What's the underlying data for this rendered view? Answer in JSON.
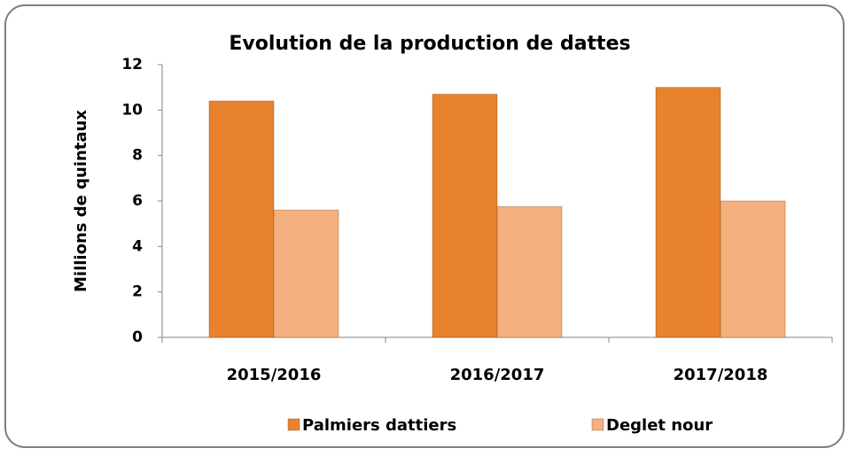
{
  "chart_data": {
    "type": "bar",
    "title": "Evolution de la production de dattes",
    "y_label": "Millions de quintaux",
    "categories": [
      "2015/2016",
      "2016/2017",
      "2017/2018"
    ],
    "series": [
      {
        "name": "Palmiers dattiers",
        "color": "#e8822c",
        "values": [
          10.4,
          10.7,
          11.0
        ]
      },
      {
        "name": "Deglet nour",
        "color": "#f4b07e",
        "values": [
          5.6,
          5.75,
          6.0
        ]
      }
    ],
    "ylim": [
      0,
      12
    ],
    "yticks": [
      0,
      2,
      4,
      6,
      8,
      10,
      12
    ],
    "grid": false,
    "legend": "bottom"
  }
}
